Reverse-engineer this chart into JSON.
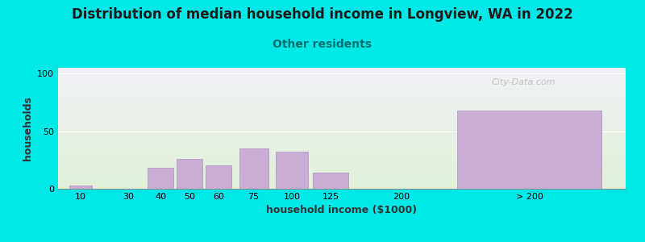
{
  "title": "Distribution of median household income in Longview, WA in 2022",
  "subtitle": "Other residents",
  "xlabel": "household income ($1000)",
  "ylabel": "households",
  "title_fontsize": 12,
  "subtitle_fontsize": 10,
  "subtitle_color": "#007070",
  "bar_color": "#c8aed4",
  "bar_edgecolor": "#b090c0",
  "background_color": "#00e8e8",
  "plot_bg_top_color": "#f0f0f5",
  "plot_bg_bottom_color": "#e0f0d8",
  "ylim": [
    0,
    105
  ],
  "yticks": [
    0,
    50,
    100
  ],
  "categories": [
    "10",
    "30",
    "40",
    "50",
    "60",
    "75",
    "100",
    "125",
    "200",
    "> 200"
  ],
  "values": [
    3,
    0,
    18,
    26,
    20,
    35,
    32,
    14,
    0,
    68
  ],
  "bar_centers": [
    0.5,
    2.0,
    3.0,
    3.9,
    4.8,
    5.9,
    7.1,
    8.3,
    10.5,
    14.5
  ],
  "bar_widths": [
    0.7,
    0,
    0.8,
    0.8,
    0.8,
    0.9,
    1.0,
    1.1,
    0,
    4.5
  ],
  "tick_positions": [
    0.5,
    2.0,
    3.0,
    3.9,
    4.8,
    5.9,
    7.1,
    8.3,
    10.5,
    14.5
  ],
  "watermark": "City-Data.com",
  "xlim": [
    -0.2,
    17.5
  ]
}
